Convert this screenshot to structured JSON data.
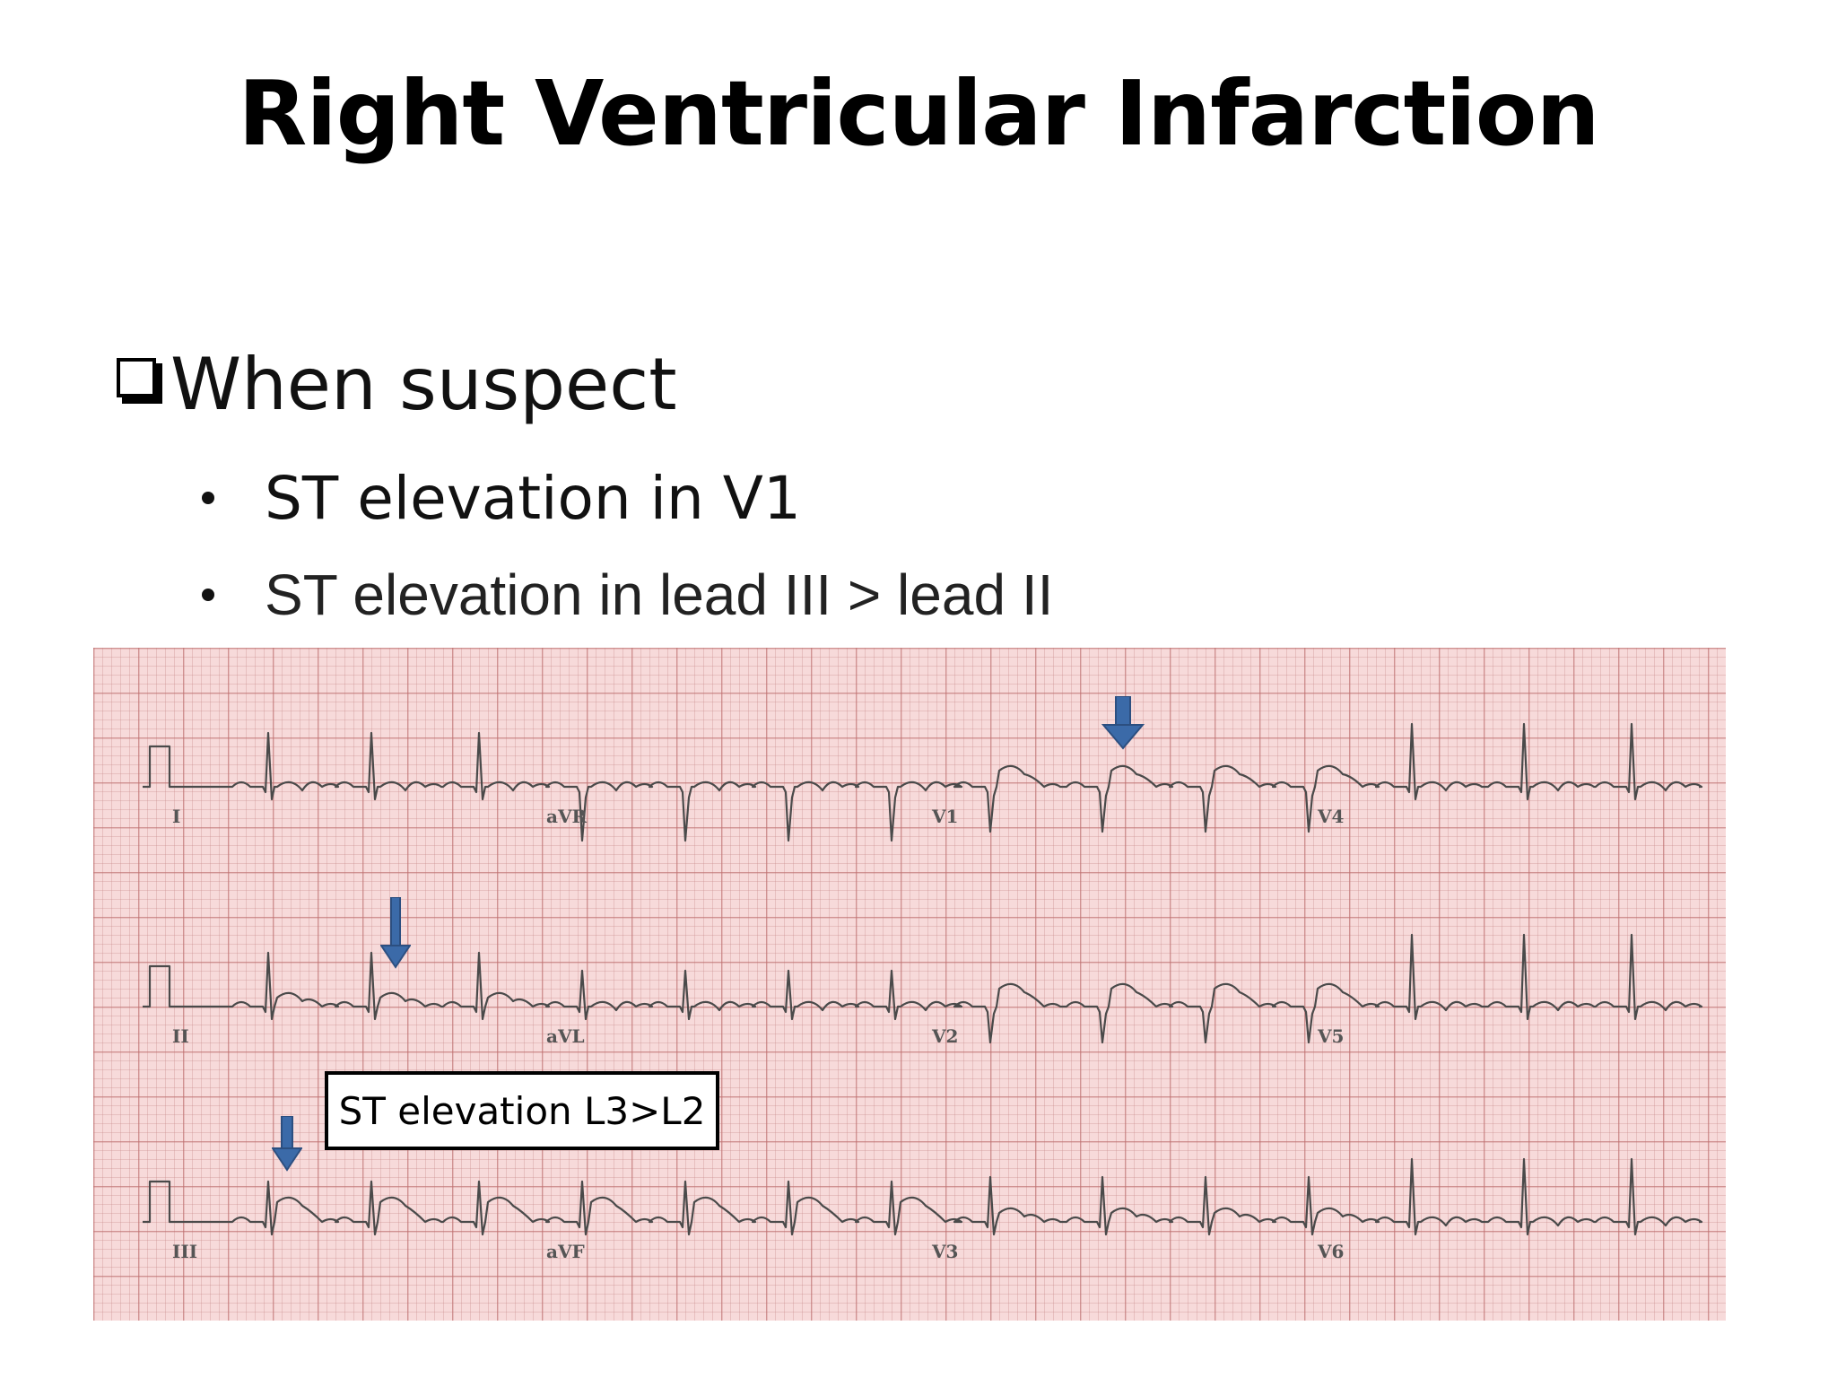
{
  "slide": {
    "title": "Right Ventricular Infarction",
    "main_bullet": "When suspect",
    "sub_bullets": [
      "ST elevation in V1",
      "ST elevation in lead III > lead II"
    ]
  },
  "ecg": {
    "lead_labels": {
      "row1": [
        "I",
        "aVR",
        "V1",
        "V4"
      ],
      "row2": [
        "II",
        "aVL",
        "V2",
        "V5"
      ],
      "row3": [
        "III",
        "aVF",
        "V3",
        "V6"
      ]
    },
    "callout_text": "ST elevation L3>L2",
    "arrow_color": "#3b6aa8",
    "grid_color": "#f7dada"
  }
}
